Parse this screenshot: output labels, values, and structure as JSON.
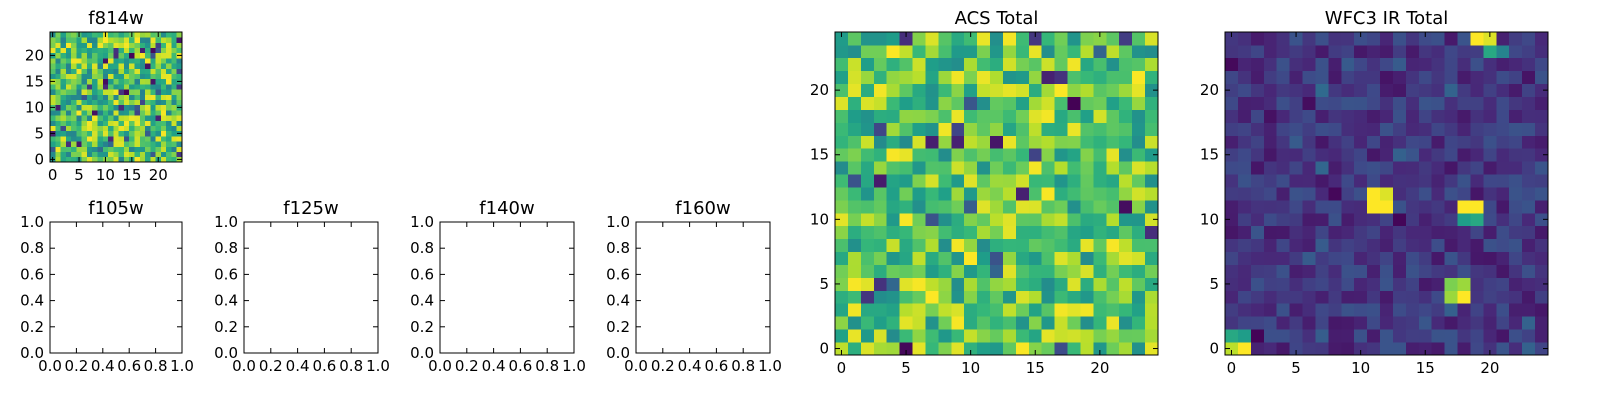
{
  "chart_data": [
    {
      "id": "f814w",
      "type": "heatmap",
      "title": "f814w",
      "xlim": [
        -0.5,
        24.5
      ],
      "ylim": [
        -0.5,
        24.5
      ],
      "x_ticks": [
        0,
        5,
        10,
        15,
        20
      ],
      "y_ticks": [
        0,
        5,
        10,
        15,
        20
      ],
      "colormap": "viridis",
      "grid_size": [
        25,
        25
      ],
      "value_range": [
        0,
        1
      ],
      "noise_seed": 814,
      "noise_base": 0.72,
      "noise_spread": 0.28,
      "blobs": []
    },
    {
      "id": "f105w",
      "type": "heatmap",
      "title": "f105w",
      "xlim": [
        0,
        1
      ],
      "ylim": [
        0,
        1
      ],
      "x_ticks": [
        "0.0",
        "0.2",
        "0.4",
        "0.6",
        "0.8",
        "1.0"
      ],
      "y_ticks": [
        "0.0",
        "0.2",
        "0.4",
        "0.6",
        "0.8",
        "1.0"
      ],
      "empty": true
    },
    {
      "id": "f125w",
      "type": "heatmap",
      "title": "f125w",
      "xlim": [
        0,
        1
      ],
      "ylim": [
        0,
        1
      ],
      "x_ticks": [
        "0.0",
        "0.2",
        "0.4",
        "0.6",
        "0.8",
        "1.0"
      ],
      "y_ticks": [
        "0.0",
        "0.2",
        "0.4",
        "0.6",
        "0.8",
        "1.0"
      ],
      "empty": true
    },
    {
      "id": "f140w",
      "type": "heatmap",
      "title": "f140w",
      "xlim": [
        0,
        1
      ],
      "ylim": [
        0,
        1
      ],
      "x_ticks": [
        "0.0",
        "0.2",
        "0.4",
        "0.6",
        "0.8",
        "1.0"
      ],
      "y_ticks": [
        "0.0",
        "0.2",
        "0.4",
        "0.6",
        "0.8",
        "1.0"
      ],
      "empty": true
    },
    {
      "id": "f160w",
      "type": "heatmap",
      "title": "f160w",
      "xlim": [
        0,
        1
      ],
      "ylim": [
        0,
        1
      ],
      "x_ticks": [
        "0.0",
        "0.2",
        "0.4",
        "0.6",
        "0.8",
        "1.0"
      ],
      "y_ticks": [
        "0.0",
        "0.2",
        "0.4",
        "0.6",
        "0.8",
        "1.0"
      ],
      "empty": true
    },
    {
      "id": "acs-total",
      "type": "heatmap",
      "title": "ACS Total",
      "xlim": [
        -0.5,
        24.5
      ],
      "ylim": [
        -0.5,
        24.5
      ],
      "x_ticks": [
        0,
        5,
        10,
        15,
        20
      ],
      "y_ticks": [
        0,
        5,
        10,
        15,
        20
      ],
      "colormap": "viridis",
      "grid_size": [
        25,
        25
      ],
      "value_range": [
        0,
        1
      ],
      "noise_seed": 2718,
      "noise_base": 0.74,
      "noise_spread": 0.26,
      "blobs": []
    },
    {
      "id": "wfc3-ir-total",
      "type": "heatmap",
      "title": "WFC3 IR Total",
      "xlim": [
        -0.5,
        24.5
      ],
      "ylim": [
        -0.5,
        24.5
      ],
      "x_ticks": [
        0,
        5,
        10,
        15,
        20
      ],
      "y_ticks": [
        0,
        5,
        10,
        15,
        20
      ],
      "colormap": "viridis",
      "grid_size": [
        25,
        25
      ],
      "value_range": [
        0,
        1
      ],
      "noise_seed": 3141,
      "noise_base": 0.16,
      "noise_spread": 0.1,
      "blobs": [
        {
          "x": 11,
          "y": 11,
          "value": 1.0
        },
        {
          "x": 12,
          "y": 11,
          "value": 1.0
        },
        {
          "x": 11,
          "y": 12,
          "value": 1.0
        },
        {
          "x": 12,
          "y": 12,
          "value": 0.95
        },
        {
          "x": 18,
          "y": 11,
          "value": 1.0
        },
        {
          "x": 19,
          "y": 11,
          "value": 1.0
        },
        {
          "x": 18,
          "y": 10,
          "value": 0.55
        },
        {
          "x": 19,
          "y": 10,
          "value": 0.6
        },
        {
          "x": 17,
          "y": 5,
          "value": 0.8
        },
        {
          "x": 18,
          "y": 5,
          "value": 0.85
        },
        {
          "x": 17,
          "y": 4,
          "value": 0.85
        },
        {
          "x": 18,
          "y": 4,
          "value": 1.0
        },
        {
          "x": 19,
          "y": 24,
          "value": 1.0
        },
        {
          "x": 20,
          "y": 24,
          "value": 0.95
        },
        {
          "x": 20,
          "y": 23,
          "value": 0.6
        },
        {
          "x": 21,
          "y": 23,
          "value": 0.45
        },
        {
          "x": 0,
          "y": 1,
          "value": 0.6
        },
        {
          "x": 1,
          "y": 1,
          "value": 0.55
        },
        {
          "x": 0,
          "y": 0,
          "value": 0.9
        },
        {
          "x": 1,
          "y": 0,
          "value": 1.0
        }
      ]
    }
  ]
}
